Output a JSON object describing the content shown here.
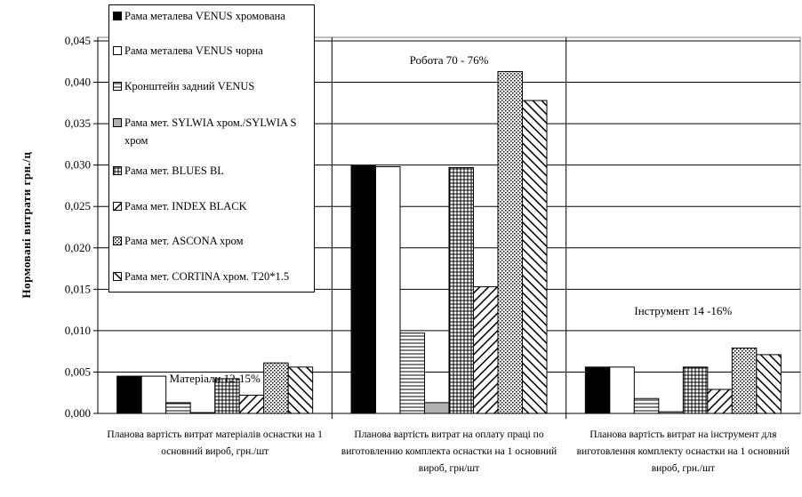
{
  "chart_data": {
    "type": "bar",
    "title": "",
    "xlabel": "",
    "ylabel": "Нормовані витрати грн./ц",
    "ylim": [
      0,
      0.045
    ],
    "yticks": [
      "0,000",
      "0,005",
      "0,010",
      "0,015",
      "0,020",
      "0,025",
      "0,030",
      "0,035",
      "0,040",
      "0,045"
    ],
    "grid": true,
    "legend_position": "top-left",
    "categories": [
      "Планова вартість витрат матеріалів оснастки на 1 основний вироб, грн./шт",
      "Планова вартість витрат на оплату праці по виготовленню комплекта оснастки на 1 основний вироб, грн/шт",
      "Планова вартість витрат на інструмент для виготовлення комплекту оснастки на 1 основний вироб, грн./шт"
    ],
    "annotations": [
      "Матеріали  12-15%",
      "Робота 70 - 76%",
      "Інструмент 14 -16%"
    ],
    "series": [
      {
        "name": "Рама металева VENUS хромована",
        "pattern": "solid-black",
        "values": [
          0.0045,
          0.0299,
          0.0056
        ]
      },
      {
        "name": "Рама металева VENUS чорна",
        "pattern": "white",
        "values": [
          0.0045,
          0.0298,
          0.0056
        ]
      },
      {
        "name": "Кронштейн задний VENUS",
        "pattern": "horizontal",
        "values": [
          0.0013,
          0.0097,
          0.0018
        ]
      },
      {
        "name": "Рама мет. SYLWIA хром./SYLWIA S хром",
        "pattern": "gray",
        "values": [
          0.0001,
          0.0013,
          0.0002
        ]
      },
      {
        "name": "Рама мет. BLUES BL",
        "pattern": "grid",
        "values": [
          0.0042,
          0.0297,
          0.0056
        ]
      },
      {
        "name": "Рама мет. INDEX BLACK",
        "pattern": "diag-down",
        "values": [
          0.0022,
          0.0153,
          0.0029
        ]
      },
      {
        "name": "Рама мет. ASCONA хром",
        "pattern": "dots",
        "values": [
          0.0061,
          0.0413,
          0.0079
        ]
      },
      {
        "name": "Рама мет. CORTINA хром. T20*1.5",
        "pattern": "diag-up",
        "values": [
          0.0056,
          0.0378,
          0.0071
        ]
      }
    ]
  }
}
